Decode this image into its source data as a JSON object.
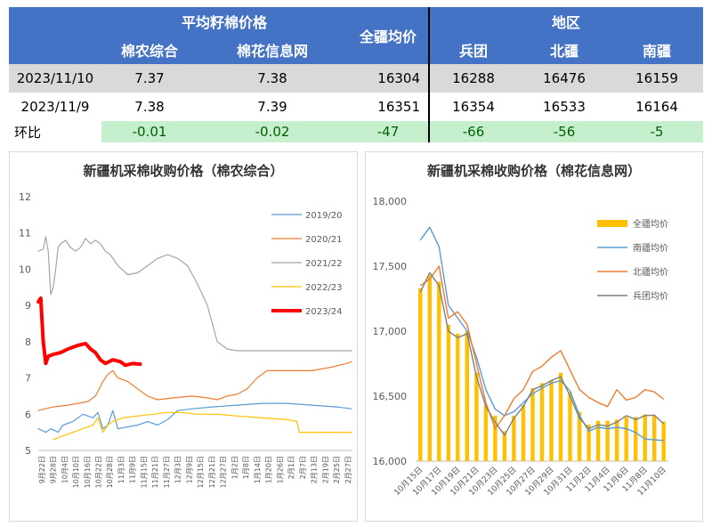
{
  "table": {
    "header": {
      "avg_price": "平均籽棉价格",
      "mn_zonghe": "棉农综合",
      "mh_xinxi": "棉花信息网",
      "qj_avg": "全疆均价",
      "region": "地区",
      "bingtuan": "兵团",
      "beijiang": "北疆",
      "nanjiang": "南疆"
    },
    "rows": [
      {
        "label": "2023/11/10",
        "c1": "7.37",
        "c2": "7.38",
        "c3": "16304",
        "c4": "16288",
        "c5": "16476",
        "c6": "16159"
      },
      {
        "label": "2023/11/9",
        "c1": "7.38",
        "c2": "7.39",
        "c3": "16351",
        "c4": "16354",
        "c5": "16533",
        "c6": "16164"
      },
      {
        "label": "环比",
        "c1": "-0.01",
        "c2": "-0.02",
        "c3": "-47",
        "c4": "-66",
        "c5": "-56",
        "c6": "-5"
      }
    ]
  },
  "chart_data": [
    {
      "type": "line",
      "title": "新疆机采棉收购价格（棉农综合）",
      "ylim": [
        5,
        12
      ],
      "yticks": [
        "5",
        "6",
        "7",
        "8",
        "9",
        "10",
        "11",
        "12"
      ],
      "x_ticks": [
        "9月22日",
        "9月28日",
        "10月4日",
        "10月10日",
        "10月16日",
        "10月22日",
        "10月28日",
        "11月3日",
        "11月9日",
        "11月15日",
        "11月21日",
        "11月27日",
        "12月3日",
        "12月9日",
        "12月15日",
        "12月21日",
        "12月27日",
        "1月2日",
        "1月8日",
        "1月14日",
        "1月20日",
        "1月26日",
        "2月1日",
        "2月7日",
        "2月13日",
        "2月19日",
        "2月25日",
        "2月27日"
      ],
      "legend_position": "right",
      "series": [
        {
          "name": "2019/20",
          "color": "#5b9bd5",
          "width": 1.2,
          "points": [
            [
              0,
              5.6
            ],
            [
              3,
              5.5
            ],
            [
              5,
              5.6
            ],
            [
              8,
              5.5
            ],
            [
              10,
              5.7
            ],
            [
              14,
              5.8
            ],
            [
              18,
              6.0
            ],
            [
              22,
              5.9
            ],
            [
              24,
              6.05
            ],
            [
              26,
              5.6
            ],
            [
              28,
              5.7
            ],
            [
              30,
              6.1
            ],
            [
              32,
              5.6
            ],
            [
              36,
              5.65
            ],
            [
              40,
              5.7
            ],
            [
              44,
              5.8
            ],
            [
              48,
              5.7
            ],
            [
              52,
              5.85
            ],
            [
              56,
              6.1
            ],
            [
              62,
              6.15
            ],
            [
              70,
              6.2
            ],
            [
              80,
              6.25
            ],
            [
              90,
              6.3
            ],
            [
              100,
              6.3
            ],
            [
              110,
              6.25
            ],
            [
              120,
              6.2
            ],
            [
              126,
              6.15
            ]
          ]
        },
        {
          "name": "2020/21",
          "color": "#ed7d31",
          "width": 1.2,
          "points": [
            [
              0,
              6.1
            ],
            [
              6,
              6.2
            ],
            [
              12,
              6.25
            ],
            [
              16,
              6.3
            ],
            [
              20,
              6.35
            ],
            [
              23,
              6.5
            ],
            [
              26,
              6.9
            ],
            [
              28,
              7.1
            ],
            [
              30,
              7.2
            ],
            [
              32,
              7.0
            ],
            [
              36,
              6.9
            ],
            [
              40,
              6.7
            ],
            [
              44,
              6.5
            ],
            [
              48,
              6.4
            ],
            [
              54,
              6.45
            ],
            [
              62,
              6.5
            ],
            [
              68,
              6.45
            ],
            [
              72,
              6.4
            ],
            [
              76,
              6.5
            ],
            [
              80,
              6.55
            ],
            [
              84,
              6.7
            ],
            [
              88,
              7.0
            ],
            [
              92,
              7.2
            ],
            [
              100,
              7.2
            ],
            [
              110,
              7.2
            ],
            [
              118,
              7.3
            ],
            [
              124,
              7.4
            ],
            [
              126,
              7.45
            ]
          ]
        },
        {
          "name": "2021/22",
          "color": "#a5a5a5",
          "width": 1.2,
          "points": [
            [
              0,
              10.5
            ],
            [
              2,
              10.55
            ],
            [
              3,
              10.9
            ],
            [
              4,
              10.5
            ],
            [
              5,
              9.3
            ],
            [
              6,
              9.5
            ],
            [
              7,
              10.0
            ],
            [
              8,
              10.6
            ],
            [
              9,
              10.7
            ],
            [
              11,
              10.8
            ],
            [
              13,
              10.6
            ],
            [
              15,
              10.5
            ],
            [
              17,
              10.6
            ],
            [
              19,
              10.85
            ],
            [
              21,
              10.7
            ],
            [
              23,
              10.8
            ],
            [
              25,
              10.7
            ],
            [
              27,
              10.5
            ],
            [
              29,
              10.4
            ],
            [
              32,
              10.1
            ],
            [
              36,
              9.85
            ],
            [
              40,
              9.9
            ],
            [
              44,
              10.1
            ],
            [
              48,
              10.3
            ],
            [
              52,
              10.4
            ],
            [
              56,
              10.3
            ],
            [
              60,
              10.1
            ],
            [
              64,
              9.6
            ],
            [
              68,
              9.0
            ],
            [
              70,
              8.5
            ],
            [
              72,
              8.0
            ],
            [
              76,
              7.8
            ],
            [
              80,
              7.75
            ],
            [
              90,
              7.75
            ],
            [
              100,
              7.75
            ],
            [
              110,
              7.75
            ],
            [
              120,
              7.75
            ],
            [
              126,
              7.75
            ]
          ]
        },
        {
          "name": "2022/23",
          "color": "#ffc000",
          "width": 1.2,
          "points": [
            [
              6,
              5.3
            ],
            [
              10,
              5.4
            ],
            [
              14,
              5.5
            ],
            [
              18,
              5.6
            ],
            [
              22,
              5.7
            ],
            [
              24,
              5.9
            ],
            [
              26,
              5.5
            ],
            [
              28,
              5.7
            ],
            [
              30,
              5.8
            ],
            [
              34,
              5.9
            ],
            [
              40,
              5.95
            ],
            [
              46,
              6.0
            ],
            [
              52,
              6.05
            ],
            [
              58,
              6.05
            ],
            [
              64,
              6.0
            ],
            [
              72,
              6.0
            ],
            [
              80,
              5.95
            ],
            [
              90,
              5.9
            ],
            [
              100,
              5.85
            ],
            [
              104,
              5.8
            ],
            [
              105,
              5.5
            ],
            [
              110,
              5.5
            ],
            [
              120,
              5.5
            ],
            [
              126,
              5.5
            ]
          ]
        },
        {
          "name": "2023/24",
          "color": "#ff0000",
          "width": 4,
          "points": [
            [
              0,
              9.1
            ],
            [
              1,
              9.2
            ],
            [
              2,
              8.0
            ],
            [
              3,
              7.4
            ],
            [
              4,
              7.6
            ],
            [
              6,
              7.65
            ],
            [
              9,
              7.7
            ],
            [
              12,
              7.8
            ],
            [
              16,
              7.9
            ],
            [
              19,
              7.95
            ],
            [
              21,
              7.8
            ],
            [
              23,
              7.7
            ],
            [
              25,
              7.5
            ],
            [
              27,
              7.4
            ],
            [
              30,
              7.5
            ],
            [
              33,
              7.45
            ],
            [
              35,
              7.35
            ],
            [
              38,
              7.4
            ],
            [
              41,
              7.38
            ]
          ]
        }
      ]
    },
    {
      "type": "bar",
      "title": "新疆机采棉收购价格（棉花信息网）",
      "ylim": [
        16000,
        18000
      ],
      "yticks": [
        "16,000",
        "16,500",
        "17,000",
        "17,500",
        "18,000"
      ],
      "categories": [
        "10月15日",
        "10月16日",
        "10月17日",
        "10月18日",
        "10月19日",
        "10月20日",
        "10月21日",
        "10月22日",
        "10月23日",
        "10月24日",
        "10月25日",
        "10月26日",
        "10月27日",
        "10月28日",
        "10月29日",
        "10月30日",
        "10月31日",
        "11月1日",
        "11月2日",
        "11月3日",
        "11月4日",
        "11月5日",
        "11月6日",
        "11月7日",
        "11月8日",
        "11月9日",
        "11月10日"
      ],
      "xtick_labels": [
        "10月15日",
        "10月17日",
        "10月19日",
        "10月21日",
        "10月23日",
        "10月25日",
        "10月27日",
        "10月29日",
        "10月31日",
        "11月2日",
        "11月4日",
        "11月6日",
        "11月8日",
        "11月10日"
      ],
      "legend_position": "top-right",
      "series": [
        {
          "name": "全疆均价",
          "type": "bar",
          "color": "#ffc000",
          "values": [
            17330,
            17430,
            17380,
            17050,
            16980,
            17000,
            16680,
            16430,
            16350,
            16230,
            16350,
            16430,
            16560,
            16600,
            16620,
            16680,
            16530,
            16380,
            16280,
            16310,
            16310,
            16320,
            16340,
            16340,
            16360,
            16351,
            16304
          ]
        },
        {
          "name": "南疆均价",
          "type": "line",
          "color": "#5b9bd5",
          "values": [
            17700,
            17800,
            17650,
            17200,
            17100,
            17000,
            16800,
            16550,
            16400,
            16350,
            16380,
            16450,
            16520,
            16560,
            16600,
            16620,
            16540,
            16350,
            16230,
            16260,
            16250,
            16260,
            16250,
            16220,
            16170,
            16164,
            16159
          ]
        },
        {
          "name": "北疆均价",
          "type": "line",
          "color": "#ed7d31",
          "values": [
            17350,
            17400,
            17500,
            17100,
            17150,
            17050,
            16750,
            16450,
            16250,
            16350,
            16480,
            16550,
            16690,
            16730,
            16800,
            16850,
            16700,
            16550,
            16490,
            16450,
            16420,
            16550,
            16470,
            16490,
            16550,
            16533,
            16476
          ]
        },
        {
          "name": "兵团均价",
          "type": "line",
          "color": "#7f7f7f",
          "values": [
            17300,
            17450,
            17350,
            17000,
            16950,
            16980,
            16650,
            16420,
            16300,
            16200,
            16330,
            16420,
            16550,
            16580,
            16620,
            16650,
            16500,
            16330,
            16250,
            16280,
            16270,
            16300,
            16350,
            16320,
            16350,
            16354,
            16288
          ]
        }
      ]
    }
  ]
}
